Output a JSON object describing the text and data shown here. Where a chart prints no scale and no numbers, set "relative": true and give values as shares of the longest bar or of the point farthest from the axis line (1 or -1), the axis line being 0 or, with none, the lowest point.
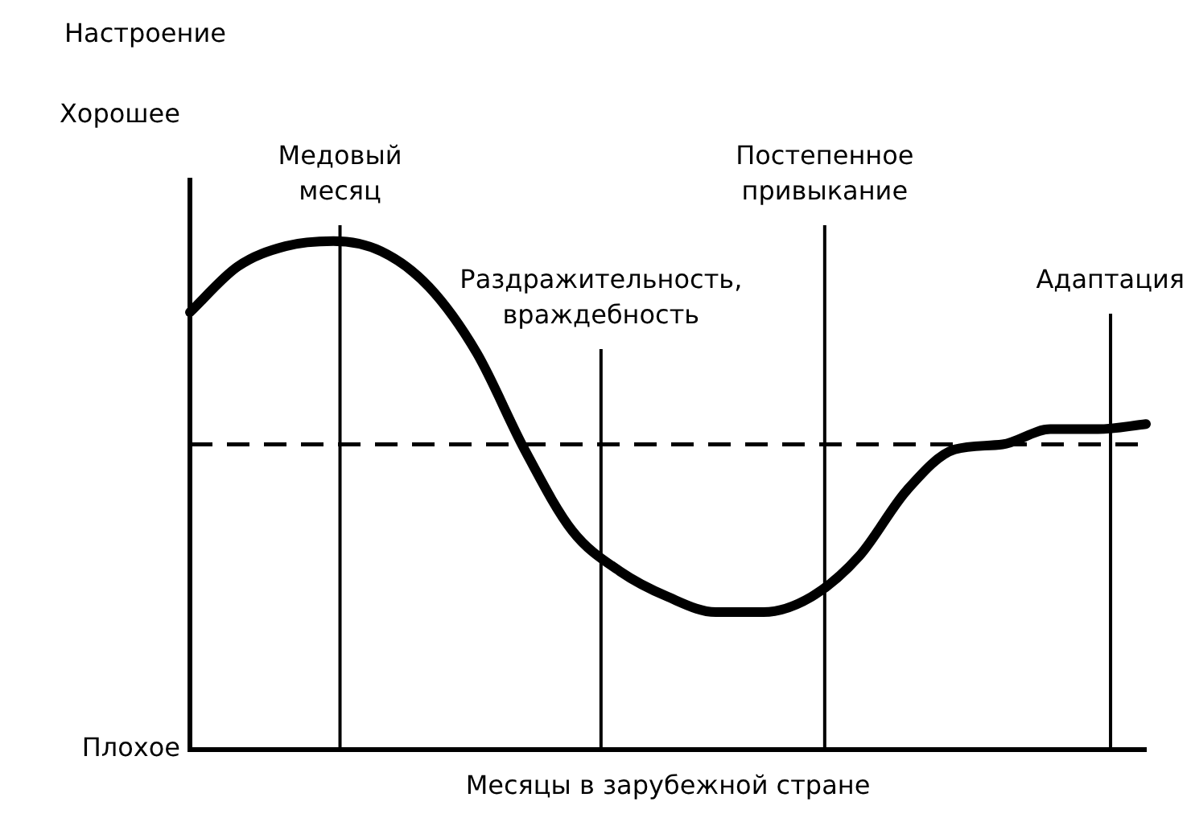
{
  "chart_data": {
    "type": "line",
    "relative": true,
    "xlabel": "Месяцы в зарубежной стране",
    "categories": [
      null,
      null,
      null,
      null,
      null,
      null,
      null,
      null,
      null,
      null,
      null,
      null,
      null,
      null,
      null,
      null,
      null,
      null,
      null,
      null,
      null
    ],
    "legend": false,
    "grid": false,
    "marker": "none",
    "series": [
      {
        "color": "#000000",
        "line_style": "solid",
        "values": [
          0.86,
          0.95,
          0.99,
          1,
          0.98,
          0.91,
          0.78,
          0.59,
          0.43,
          0.35,
          0.3,
          0.27,
          0.27,
          0.3,
          0.38,
          0.51,
          0.59,
          0.6,
          0.63,
          0.63,
          0.64
        ]
      }
    ],
    "ref_lines": [
      {
        "axis": "y",
        "value": 0.6,
        "color": "#000000",
        "line_style": "dashed"
      }
    ],
    "annotations": [
      "Настроение",
      "Хорошее",
      "Плохое",
      "Медовый месяц",
      "Раздражительность, враждебность",
      "Постепенное привыкание",
      "Адаптация"
    ]
  }
}
